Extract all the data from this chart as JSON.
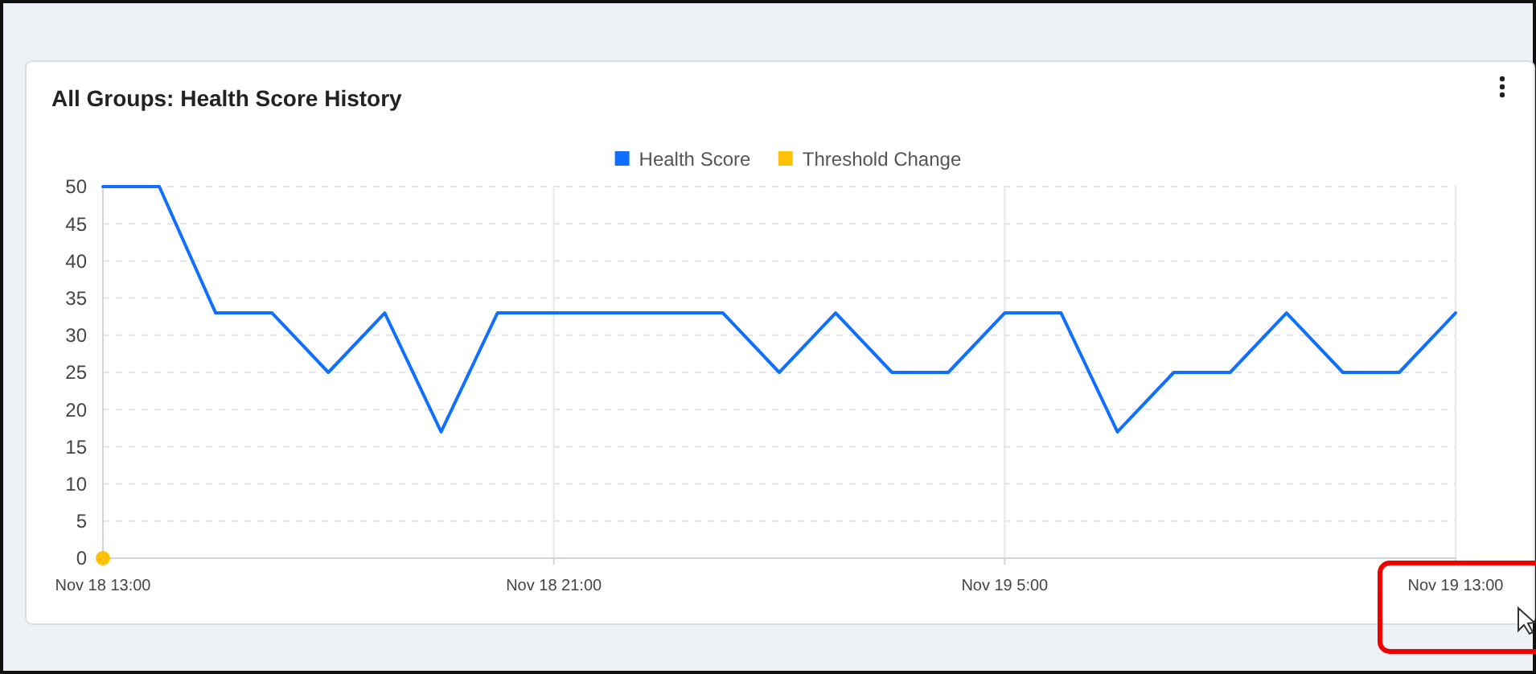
{
  "chart_data": {
    "type": "line",
    "title": "All Groups: Health Score History",
    "categories": [
      "Nov 18 13:00",
      null,
      null,
      null,
      null,
      null,
      null,
      null,
      "Nov 18 21:00",
      null,
      null,
      null,
      null,
      null,
      null,
      null,
      "Nov 19 5:00",
      null,
      null,
      null,
      null,
      null,
      null,
      null,
      "Nov 19 13:00"
    ],
    "series": [
      {
        "name": "Health Score",
        "color": "#0f6fff",
        "marker": "none",
        "values": [
          50,
          50,
          33,
          33,
          25,
          33,
          17,
          33,
          33,
          33,
          33,
          33,
          25,
          33,
          25,
          25,
          33,
          33,
          17,
          25,
          25,
          33,
          25,
          25,
          33
        ]
      },
      {
        "name": "Threshold Change",
        "color": "#ffc107",
        "type": "scatter",
        "marker": "circle",
        "x": [
          "Nov 18 13:00"
        ],
        "values": [
          0
        ]
      }
    ],
    "ylim": [
      0,
      50
    ],
    "yticks": [
      0,
      5,
      10,
      15,
      20,
      25,
      30,
      35,
      40,
      45,
      50
    ],
    "grid": true,
    "legend": "top"
  }
}
